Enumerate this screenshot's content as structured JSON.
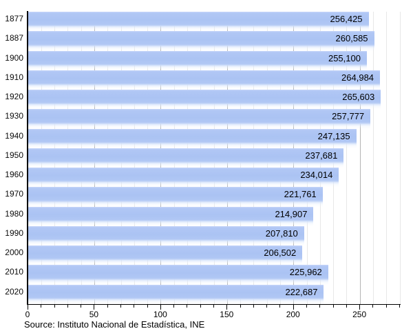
{
  "chart_data": {
    "type": "bar",
    "orientation": "horizontal",
    "title": "",
    "categories": [
      "1877",
      "1887",
      "1900",
      "1910",
      "1920",
      "1930",
      "1940",
      "1950",
      "1960",
      "1970",
      "1980",
      "1990",
      "2000",
      "2010",
      "2020"
    ],
    "values": [
      256425,
      260585,
      255100,
      264984,
      265603,
      257777,
      247135,
      237681,
      234014,
      221761,
      214907,
      207810,
      206502,
      225962,
      222687
    ],
    "value_labels": [
      "256,425",
      "260,585",
      "255,100",
      "264,984",
      "265,603",
      "257,777",
      "247,135",
      "237,681",
      "234,014",
      "221,761",
      "214,907",
      "207,810",
      "206,502",
      "225,962",
      "222,687"
    ],
    "xlabel": "",
    "ylabel": "",
    "xlim_thousands": [
      0,
      280
    ],
    "x_major_ticks": [
      0,
      50,
      100,
      150,
      200,
      250
    ],
    "x_minor_step": 10,
    "grid": "vertical, minor every 10 (light), major every 50 (dark)",
    "legend_position": "none",
    "source_note": "Source: Instituto Nacional de Estadística, INE",
    "colors": {
      "bar": "#abc3f3",
      "bar_highlight": "#c6d6f9",
      "grid_minor": "#e7e7e7",
      "grid_major": "#b3b3b3",
      "axis": "#000000",
      "text": "#000000",
      "background": "#ffffff"
    }
  }
}
